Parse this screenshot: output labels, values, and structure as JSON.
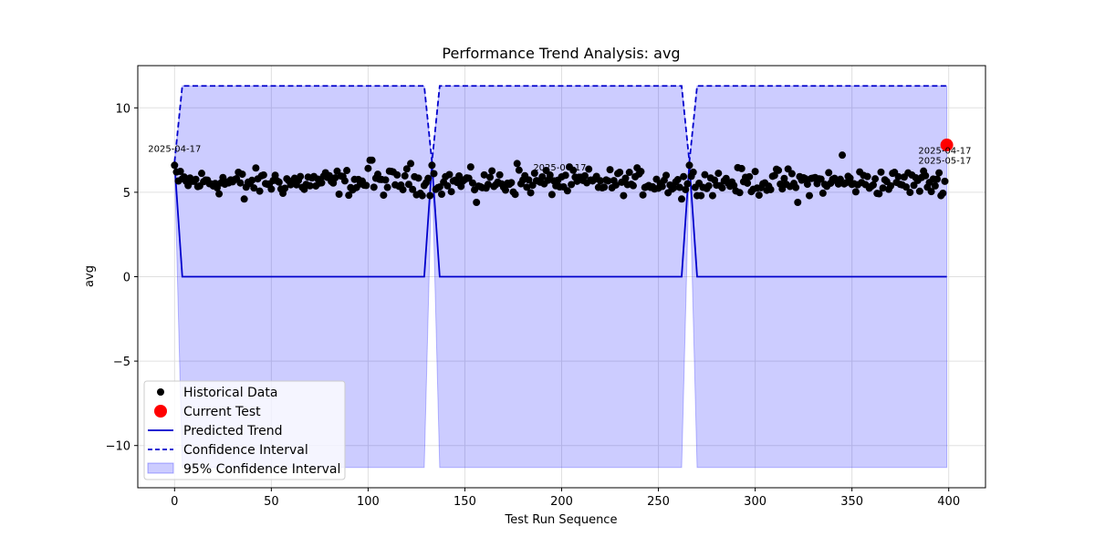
{
  "chart_data": {
    "type": "scatter",
    "title": "Performance Trend Analysis: avg",
    "xlabel": "Test Run Sequence",
    "ylabel": "avg",
    "xlim": [
      -19,
      419
    ],
    "ylim": [
      -12.5,
      12.5
    ],
    "xticks": [
      0,
      50,
      100,
      150,
      200,
      250,
      300,
      350,
      400
    ],
    "yticks": [
      -10,
      -5,
      0,
      5,
      10
    ],
    "ytick_labels": [
      "−10",
      "−5",
      "0",
      "5",
      "10"
    ],
    "grid": true,
    "colors": {
      "historical": "#000000",
      "current": "#ff0000",
      "trend": "#0000cc",
      "band_fill": "#0000ff",
      "grid": "#e0e0e0"
    },
    "historical": {
      "x_start": 0,
      "x_end": 398,
      "count": 399,
      "y_mean": 5.6,
      "y_min": 4.4,
      "y_max": 7.2,
      "outliers": [
        [
          1,
          6.2
        ],
        [
          101,
          6.9
        ],
        [
          102,
          6.9
        ],
        [
          122,
          6.7
        ],
        [
          177,
          6.7
        ],
        [
          345,
          7.2
        ],
        [
          322,
          4.4
        ],
        [
          156,
          4.4
        ],
        [
          36,
          4.6
        ],
        [
          262,
          4.6
        ]
      ]
    },
    "current_test": {
      "x": 399,
      "y": 7.8,
      "label": "2025-05-17"
    },
    "predicted_trend": {
      "x": [
        0,
        4,
        129,
        133,
        137,
        262,
        266,
        270,
        399
      ],
      "y": [
        6.7,
        0.0,
        0.0,
        6.7,
        0.0,
        0.0,
        6.7,
        0.0,
        0.0
      ]
    },
    "confidence_upper": {
      "x": [
        0,
        4,
        129,
        133,
        137,
        262,
        266,
        270,
        399
      ],
      "y": [
        6.8,
        11.3,
        11.3,
        6.8,
        11.3,
        11.3,
        6.8,
        11.3,
        11.3
      ]
    },
    "confidence_lower": {
      "x": [
        0,
        4,
        129,
        133,
        137,
        262,
        266,
        270,
        399
      ],
      "y": [
        6.6,
        -11.3,
        -11.3,
        6.6,
        -11.3,
        -11.3,
        6.6,
        -11.3,
        -11.3
      ]
    },
    "annotations": [
      {
        "text": "2025-04-17",
        "x": 0,
        "y": 7.4
      },
      {
        "text": "2025-04-17",
        "x": 199,
        "y": 6.3
      },
      {
        "text": "2025-04-17",
        "x": 398,
        "y": 7.3
      },
      {
        "text": "2025-05-17",
        "x": 398,
        "y": 6.7
      }
    ],
    "legend": {
      "position": "lower-left",
      "entries": [
        "Historical Data",
        "Current Test",
        "Predicted Trend",
        "Confidence Interval",
        "95% Confidence Interval"
      ]
    }
  }
}
